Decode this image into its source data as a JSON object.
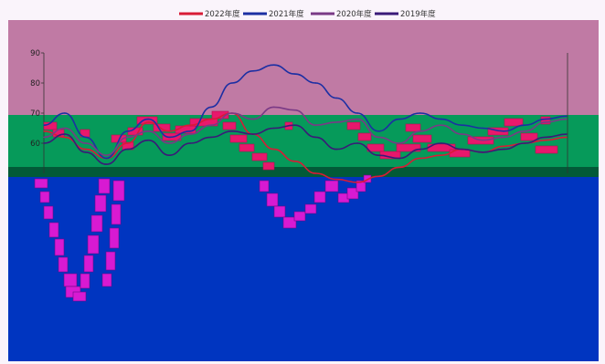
{
  "chart_data": {
    "type": "line",
    "title": "",
    "xlabel": "",
    "ylabel": "",
    "ylim": [
      50,
      90
    ],
    "yticks": [
      60,
      70,
      80,
      90
    ],
    "grid": false,
    "legend_position": "top",
    "background_colors": {
      "upper": "#c07aa4",
      "middle": "#069a5a",
      "dark_band": "#025a38",
      "lower": "#0035c0",
      "top_strip": "#faf4fb"
    },
    "overlay_colors": {
      "pink": "#e8186c",
      "magenta": "#d81ad2"
    },
    "series": [
      {
        "name": "2022年度",
        "color": "#d81b36",
        "x": [
          0,
          4,
          8,
          12,
          16,
          20,
          24,
          28,
          32,
          36,
          40,
          44,
          48,
          52,
          56,
          60,
          64,
          68,
          72,
          76,
          80,
          84,
          88,
          92,
          96,
          100
        ],
        "y": [
          64,
          62,
          58,
          55,
          60,
          67,
          64,
          66,
          68,
          70,
          63,
          58,
          54,
          50,
          48,
          47,
          49,
          52,
          55,
          56,
          58,
          57,
          59,
          60,
          61,
          62
        ]
      },
      {
        "name": "2021年度",
        "color": "#1c2fa3",
        "x": [
          0,
          4,
          8,
          12,
          16,
          20,
          24,
          28,
          32,
          36,
          40,
          44,
          48,
          52,
          56,
          60,
          64,
          68,
          72,
          76,
          80,
          84,
          88,
          92,
          96,
          100
        ],
        "y": [
          66,
          70,
          62,
          55,
          64,
          68,
          62,
          64,
          72,
          80,
          84,
          86,
          83,
          80,
          75,
          70,
          64,
          68,
          70,
          68,
          66,
          65,
          64,
          66,
          68,
          69
        ]
      },
      {
        "name": "2020年度",
        "color": "#7a3a86",
        "x": [
          0,
          4,
          8,
          12,
          16,
          20,
          24,
          28,
          32,
          36,
          40,
          44,
          48,
          52,
          56,
          60,
          64,
          68,
          72,
          76,
          80,
          84,
          88,
          92,
          96,
          100
        ],
        "y": [
          62,
          65,
          60,
          56,
          62,
          64,
          60,
          63,
          66,
          70,
          68,
          72,
          71,
          66,
          67,
          68,
          62,
          60,
          64,
          66,
          63,
          61,
          62,
          64,
          67,
          68
        ]
      },
      {
        "name": "2019年度",
        "color": "#3a1a78",
        "x": [
          0,
          4,
          8,
          12,
          16,
          20,
          24,
          28,
          32,
          36,
          40,
          44,
          48,
          52,
          56,
          60,
          64,
          68,
          72,
          76,
          80,
          84,
          88,
          92,
          96,
          100
        ],
        "y": [
          60,
          63,
          57,
          53,
          58,
          61,
          56,
          60,
          62,
          64,
          63,
          65,
          66,
          62,
          58,
          60,
          56,
          55,
          58,
          60,
          58,
          57,
          58,
          60,
          62,
          63
        ]
      }
    ]
  }
}
